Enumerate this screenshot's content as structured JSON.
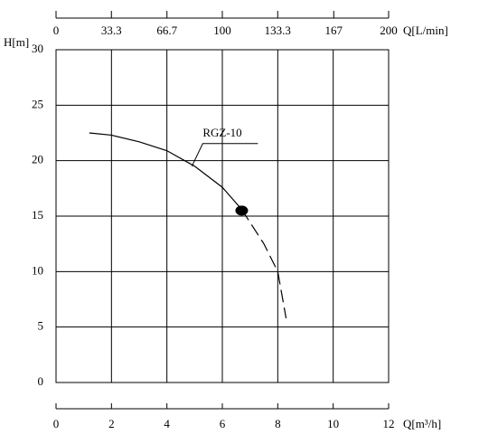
{
  "chart_data": {
    "type": "line",
    "xlabel": "Q[m³/h]",
    "ylabel": "H[m]",
    "x2label": "Q[L/min]",
    "xlim": [
      0,
      12
    ],
    "xticks": [
      0,
      2,
      4,
      6,
      8,
      10,
      12
    ],
    "x2lim": [
      0,
      200
    ],
    "x2ticks": [
      0,
      33.3,
      66.7,
      100,
      133.3,
      167,
      200
    ],
    "ylim": [
      0,
      30
    ],
    "yticks": [
      0,
      5,
      10,
      15,
      20,
      25,
      30
    ],
    "grid": true,
    "series": [
      {
        "name": "RGZ-10",
        "color": "#000000",
        "x": [
          1.2,
          2,
          3,
          4,
          5,
          6,
          6.7,
          7.5,
          8,
          8.3
        ],
        "values": [
          22.5,
          22.3,
          21.7,
          20.9,
          19.5,
          17.6,
          15.6,
          12.5,
          10,
          5.8
        ],
        "dash_start": 6
      }
    ],
    "operating_point": {
      "x": 6.7,
      "y": 15.5
    }
  }
}
